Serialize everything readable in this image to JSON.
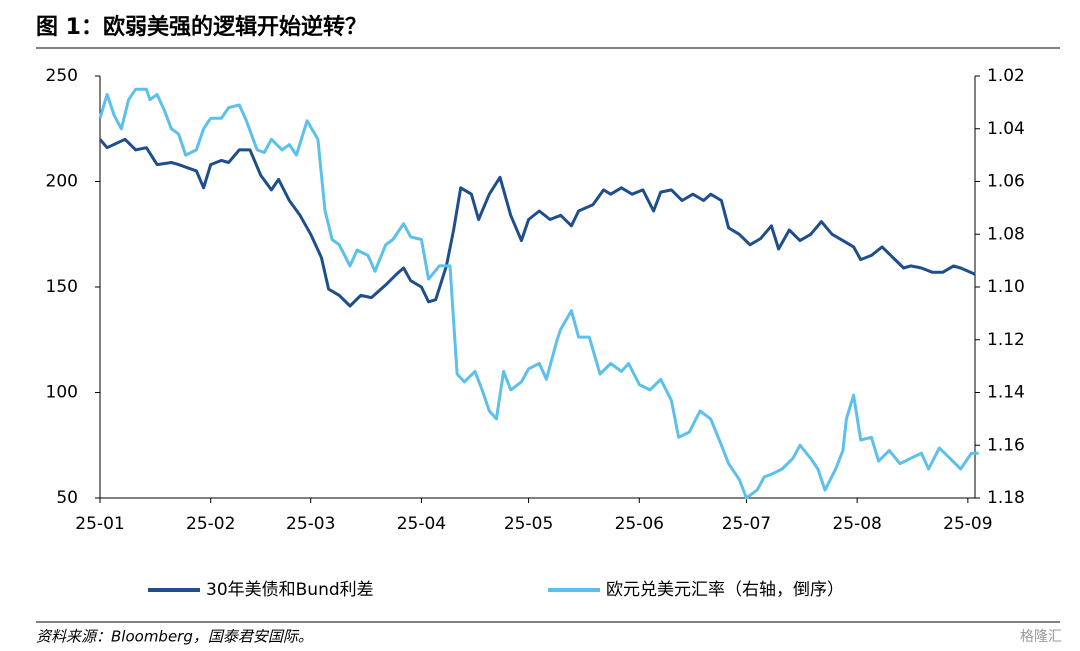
{
  "chart_data": {
    "type": "line",
    "title": "图 1：欧弱美强的逻辑开始逆转？",
    "source": "资料来源：Bloomberg，国泰君安国际。",
    "watermark": "格隆汇",
    "xlim": [
      0,
      245
    ],
    "xticks": [
      {
        "value": 0,
        "label": "25-01"
      },
      {
        "value": 31,
        "label": "25-02"
      },
      {
        "value": 59,
        "label": "25-03"
      },
      {
        "value": 90,
        "label": "25-04"
      },
      {
        "value": 120,
        "label": "25-05"
      },
      {
        "value": 151,
        "label": "25-06"
      },
      {
        "value": 181,
        "label": "25-07"
      },
      {
        "value": 212,
        "label": "25-08"
      },
      {
        "value": 243,
        "label": "25-09"
      }
    ],
    "ylim": [
      50,
      250
    ],
    "yticks": [
      50,
      100,
      150,
      200,
      250
    ],
    "y2lim": [
      1.18,
      1.02
    ],
    "y2ticks": [
      {
        "value": 1.02,
        "label": "1.02"
      },
      {
        "value": 1.04,
        "label": "1.04"
      },
      {
        "value": 1.06,
        "label": "1.06"
      },
      {
        "value": 1.08,
        "label": "1.08"
      },
      {
        "value": 1.1,
        "label": "1.10"
      },
      {
        "value": 1.12,
        "label": "1.12"
      },
      {
        "value": 1.14,
        "label": "1.14"
      },
      {
        "value": 1.16,
        "label": "1.16"
      },
      {
        "value": 1.18,
        "label": "1.18"
      }
    ],
    "grid": false,
    "series": [
      {
        "name": "30年美债和Bund利差",
        "color": "#1f4e8c",
        "axis": "y",
        "x": [
          0,
          2,
          7,
          10,
          13,
          16,
          20,
          22,
          27,
          29,
          31,
          34,
          36,
          39,
          42,
          45,
          48,
          50,
          53,
          56,
          59,
          62,
          64,
          67,
          70,
          73,
          76,
          80,
          83,
          85,
          87,
          90,
          92,
          94,
          97,
          99,
          101,
          104,
          106,
          109,
          112,
          115,
          118,
          120,
          123,
          126,
          129,
          132,
          134,
          138,
          141,
          143,
          146,
          149,
          152,
          155,
          157,
          160,
          163,
          166,
          169,
          171,
          174,
          176,
          179,
          182,
          185,
          188,
          190,
          193,
          196,
          199,
          202,
          205,
          208,
          211,
          213,
          216,
          219,
          222,
          225,
          227,
          230,
          233,
          236,
          239,
          241,
          245
        ],
        "values": [
          220,
          216,
          220,
          215,
          216,
          208,
          209,
          208,
          205,
          197,
          208,
          210,
          209,
          215,
          215,
          203,
          196,
          201,
          191,
          184,
          175,
          164,
          149,
          146,
          141,
          146,
          145,
          151,
          156,
          159,
          153,
          150,
          143,
          144,
          160,
          177,
          197,
          194,
          182,
          194,
          202,
          184,
          172,
          182,
          186,
          182,
          184,
          179,
          186,
          189,
          196,
          194,
          197,
          194,
          196,
          186,
          195,
          196,
          191,
          194,
          191,
          194,
          191,
          178,
          175,
          170,
          173,
          179,
          168,
          177,
          172,
          175,
          181,
          175,
          172,
          169,
          163,
          165,
          169,
          164,
          159,
          160,
          159,
          157,
          157,
          160,
          159,
          156
        ]
      },
      {
        "name": "欧元兑美元汇率（右轴，倒序）",
        "color": "#5bc0eb",
        "axis": "y2",
        "x": [
          0,
          2,
          4,
          6,
          8,
          10,
          13,
          14,
          16,
          18,
          20,
          22,
          24,
          27,
          29,
          31,
          34,
          36,
          39,
          41,
          44,
          46,
          48,
          51,
          53,
          55,
          58,
          61,
          63,
          65,
          67,
          70,
          72,
          75,
          77,
          80,
          82,
          85,
          87,
          90,
          92,
          95,
          98,
          100,
          102,
          105,
          107,
          109,
          111,
          113,
          115,
          118,
          120,
          123,
          125,
          128,
          129,
          132,
          134,
          137,
          140,
          143,
          146,
          148,
          151,
          154,
          157,
          160,
          162,
          165,
          168,
          171,
          174,
          176,
          179,
          181,
          184,
          186,
          188,
          191,
          194,
          196,
          199,
          201,
          203,
          206,
          208,
          209,
          211,
          213,
          216,
          218,
          221,
          224,
          227,
          230,
          232,
          235,
          238,
          241,
          244,
          246
        ],
        "values": [
          1.036,
          1.027,
          1.035,
          1.04,
          1.029,
          1.025,
          1.025,
          1.029,
          1.027,
          1.033,
          1.04,
          1.042,
          1.05,
          1.048,
          1.04,
          1.036,
          1.036,
          1.032,
          1.031,
          1.037,
          1.048,
          1.049,
          1.044,
          1.048,
          1.046,
          1.05,
          1.037,
          1.044,
          1.071,
          1.082,
          1.084,
          1.092,
          1.086,
          1.088,
          1.094,
          1.084,
          1.082,
          1.076,
          1.081,
          1.082,
          1.097,
          1.092,
          1.092,
          1.133,
          1.136,
          1.132,
          1.139,
          1.147,
          1.15,
          1.132,
          1.139,
          1.136,
          1.131,
          1.129,
          1.135,
          1.12,
          1.116,
          1.109,
          1.119,
          1.119,
          1.133,
          1.129,
          1.132,
          1.129,
          1.137,
          1.139,
          1.135,
          1.143,
          1.157,
          1.155,
          1.147,
          1.15,
          1.16,
          1.167,
          1.173,
          1.18,
          1.177,
          1.172,
          1.171,
          1.169,
          1.165,
          1.16,
          1.165,
          1.169,
          1.177,
          1.169,
          1.162,
          1.15,
          1.141,
          1.158,
          1.157,
          1.166,
          1.162,
          1.167,
          1.165,
          1.163,
          1.169,
          1.161,
          1.165,
          1.169,
          1.163,
          1.163
        ]
      }
    ]
  }
}
